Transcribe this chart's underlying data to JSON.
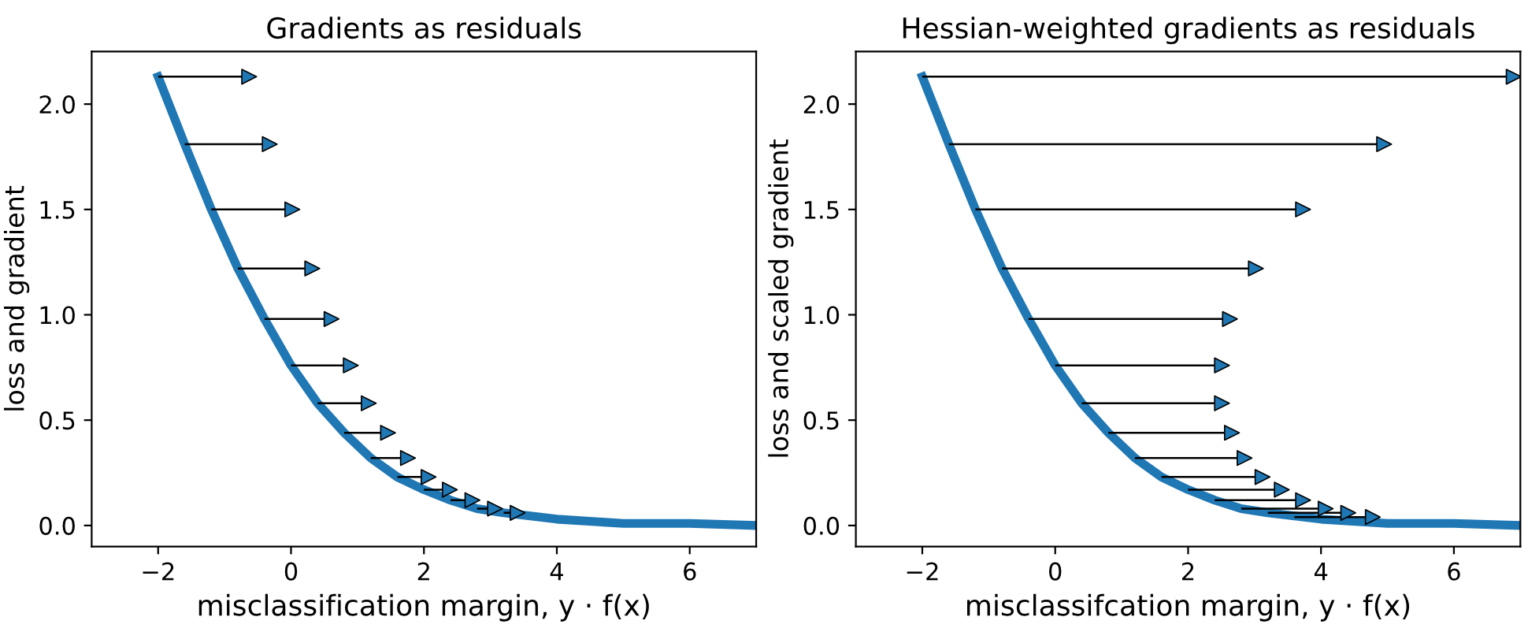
{
  "chart_data": [
    {
      "type": "line",
      "title": "Gradients as residuals",
      "xlabel": "misclassification margin, y · f(x)",
      "ylabel": "loss and gradient",
      "xlim": [
        -3,
        7
      ],
      "xticks": [
        {
          "value": -2,
          "label": "−2"
        },
        0,
        2,
        4,
        6
      ],
      "ylim": [
        -0.1,
        2.25
      ],
      "yticks": [
        {
          "value": 0,
          "label": "0.0"
        },
        {
          "value": 0.5,
          "label": "0.5"
        },
        {
          "value": 1,
          "label": "1.0"
        },
        {
          "value": 1.5,
          "label": "1.5"
        },
        {
          "value": 2,
          "label": "2.0"
        }
      ],
      "grid": false,
      "legend": false,
      "series": [
        {
          "color": "#1f77b4",
          "x": [
            -2,
            -1.6,
            -1.2,
            -0.8,
            -0.4,
            0,
            0.4,
            0.8,
            1.2,
            1.6,
            2.0,
            2.4,
            2.8,
            3.2,
            4,
            5,
            6,
            7
          ],
          "values": [
            2.13,
            1.81,
            1.5,
            1.22,
            0.98,
            0.76,
            0.58,
            0.44,
            0.32,
            0.23,
            0.17,
            0.12,
            0.08,
            0.06,
            0.03,
            0.01,
            0.01,
            0.0
          ]
        },
        {
          "type": "scatter",
          "marker": "triangle",
          "color": "#1f77b4",
          "x": [
            -0.63,
            -0.32,
            0.02,
            0.32,
            0.61,
            0.9,
            1.17,
            1.46,
            1.76,
            2.07,
            2.39,
            2.73,
            3.07,
            3.41
          ],
          "values": [
            2.13,
            1.81,
            1.5,
            1.22,
            0.98,
            0.76,
            0.58,
            0.44,
            0.32,
            0.23,
            0.17,
            0.12,
            0.08,
            0.06
          ],
          "xerrors": [
            [
              -2,
              -0.63
            ],
            [
              -1.6,
              -0.32
            ],
            [
              -1.2,
              0.02
            ],
            [
              -0.8,
              0.32
            ],
            [
              -0.4,
              0.61
            ],
            [
              0,
              0.9
            ],
            [
              0.4,
              1.17
            ],
            [
              0.8,
              1.46
            ],
            [
              1.2,
              1.76
            ],
            [
              1.6,
              2.07
            ],
            [
              2.0,
              2.39
            ],
            [
              2.4,
              2.73
            ],
            [
              2.8,
              3.07
            ],
            [
              3.2,
              3.41
            ]
          ]
        }
      ]
    },
    {
      "type": "line",
      "title": "Hessian-weighted gradients as residuals",
      "xlabel": "misclassifcation margin, y · f(x)",
      "ylabel": "loss and scaled gradient",
      "xlim": [
        -3,
        7
      ],
      "xticks": [
        {
          "value": -2,
          "label": "−2"
        },
        0,
        2,
        4,
        6
      ],
      "ylim": [
        -0.1,
        2.25
      ],
      "yticks": [
        {
          "value": 0,
          "label": "0.0"
        },
        {
          "value": 0.5,
          "label": "0.5"
        },
        {
          "value": 1,
          "label": "1.0"
        },
        {
          "value": 1.5,
          "label": "1.5"
        },
        {
          "value": 2,
          "label": "2.0"
        }
      ],
      "grid": false,
      "legend": false,
      "series": [
        {
          "color": "#1f77b4",
          "x": [
            -2,
            -1.6,
            -1.2,
            -0.8,
            -0.4,
            0,
            0.4,
            0.8,
            1.2,
            1.6,
            2.0,
            2.4,
            2.8,
            3.2,
            4,
            5,
            6,
            7
          ],
          "values": [
            2.13,
            1.81,
            1.5,
            1.22,
            0.98,
            0.76,
            0.58,
            0.44,
            0.32,
            0.23,
            0.17,
            0.12,
            0.08,
            0.06,
            0.03,
            0.01,
            0.01,
            0.0
          ]
        },
        {
          "type": "scatter",
          "marker": "triangle",
          "color": "#1f77b4",
          "x": [
            6.9,
            4.95,
            3.73,
            3.02,
            2.63,
            2.51,
            2.51,
            2.66,
            2.85,
            3.12,
            3.41,
            3.73,
            4.07,
            4.41,
            4.78
          ],
          "values": [
            2.13,
            1.81,
            1.5,
            1.22,
            0.98,
            0.76,
            0.58,
            0.44,
            0.32,
            0.23,
            0.17,
            0.12,
            0.08,
            0.06,
            0.04
          ],
          "xerrors": [
            [
              -2,
              6.9
            ],
            [
              -1.6,
              4.95
            ],
            [
              -1.2,
              3.73
            ],
            [
              -0.8,
              3.02
            ],
            [
              -0.4,
              2.63
            ],
            [
              0,
              2.51
            ],
            [
              0.4,
              2.51
            ],
            [
              0.8,
              2.66
            ],
            [
              1.2,
              2.85
            ],
            [
              1.6,
              3.12
            ],
            [
              2.0,
              3.41
            ],
            [
              2.4,
              3.73
            ],
            [
              2.8,
              4.07
            ],
            [
              3.2,
              4.41
            ],
            [
              3.6,
              4.78
            ]
          ]
        }
      ]
    }
  ]
}
